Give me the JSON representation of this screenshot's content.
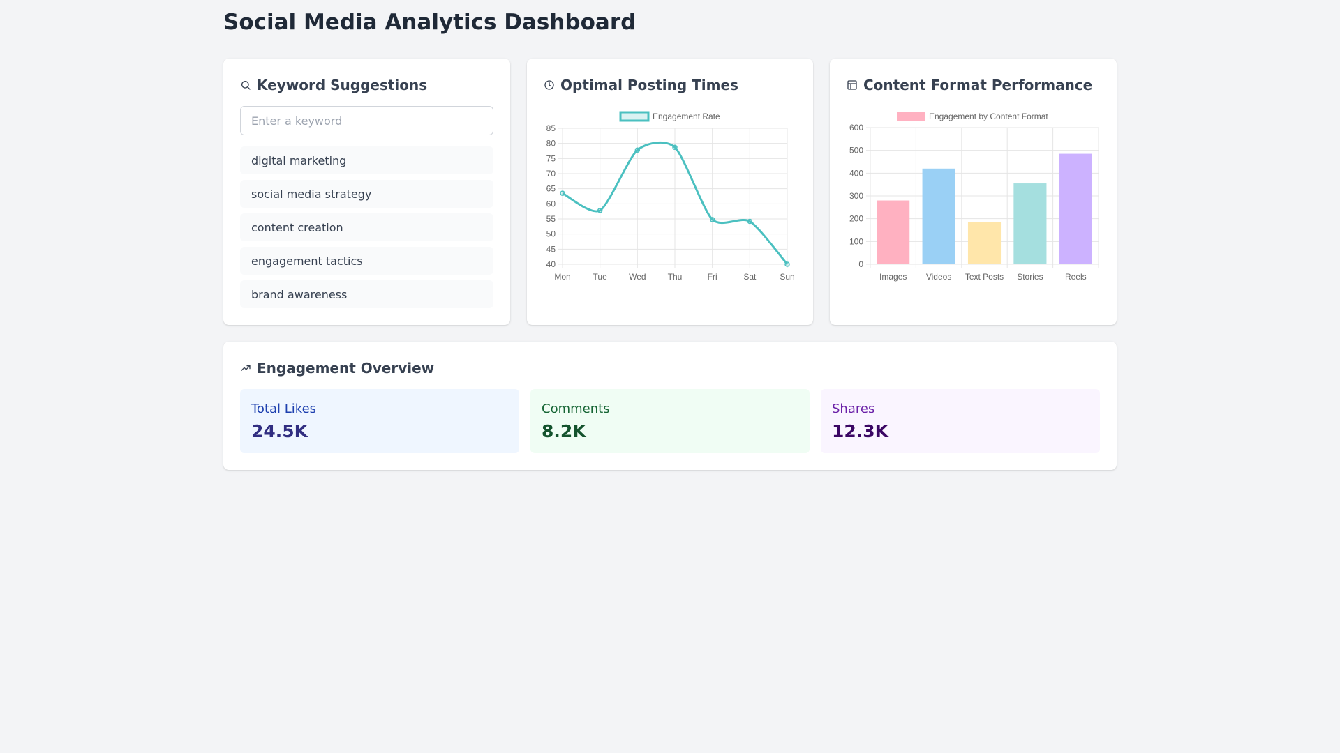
{
  "page": {
    "title": "Social Media Analytics Dashboard"
  },
  "keywords": {
    "title": "Keyword Suggestions",
    "icon": "search-icon",
    "input_placeholder": "Enter a keyword",
    "input_value": "",
    "items": [
      "digital marketing",
      "social media strategy",
      "content creation",
      "engagement tactics",
      "brand awareness"
    ]
  },
  "posting": {
    "title": "Optimal Posting Times",
    "icon": "clock-icon"
  },
  "formats": {
    "title": "Content Format Performance",
    "icon": "layout-icon"
  },
  "overview": {
    "title": "Engagement Overview",
    "icon": "trending-up-icon",
    "stats": [
      {
        "label": "Total Likes",
        "value": "24.5K",
        "bg": "#eff6ff",
        "label_color": "#1e40af",
        "value_color": "#312e81"
      },
      {
        "label": "Comments",
        "value": "8.2K",
        "bg": "#f0fdf4",
        "label_color": "#166534",
        "value_color": "#14532d"
      },
      {
        "label": "Shares",
        "value": "12.3K",
        "bg": "#faf5ff",
        "label_color": "#6b21a8",
        "value_color": "#3b0764"
      }
    ]
  },
  "chart_data": [
    {
      "type": "line",
      "categories": [
        "Mon",
        "Tue",
        "Wed",
        "Thu",
        "Fri",
        "Sat",
        "Sun"
      ],
      "series": [
        {
          "name": "Engagement Rate",
          "values": [
            63.5,
            57.8,
            77.8,
            78.7,
            54.8,
            54.2,
            40
          ],
          "color": "#4bc0c0"
        }
      ],
      "ylim": [
        40,
        85
      ],
      "yticks": [
        40,
        45,
        50,
        55,
        60,
        65,
        70,
        75,
        80,
        85
      ],
      "legend": "top-center",
      "grid": true
    },
    {
      "type": "bar",
      "categories": [
        "Images",
        "Videos",
        "Text Posts",
        "Stories",
        "Reels"
      ],
      "series": [
        {
          "name": "Engagement by Content Format",
          "values": [
            280,
            420,
            185,
            355,
            485
          ]
        }
      ],
      "colors": [
        "#ffb1c1",
        "#9ad0f5",
        "#ffe6aa",
        "#a5dfdf",
        "#ccb2ff"
      ],
      "ylim": [
        0,
        600
      ],
      "yticks": [
        0,
        100,
        200,
        300,
        400,
        500,
        600
      ],
      "legend": "top-center",
      "grid": true
    }
  ]
}
